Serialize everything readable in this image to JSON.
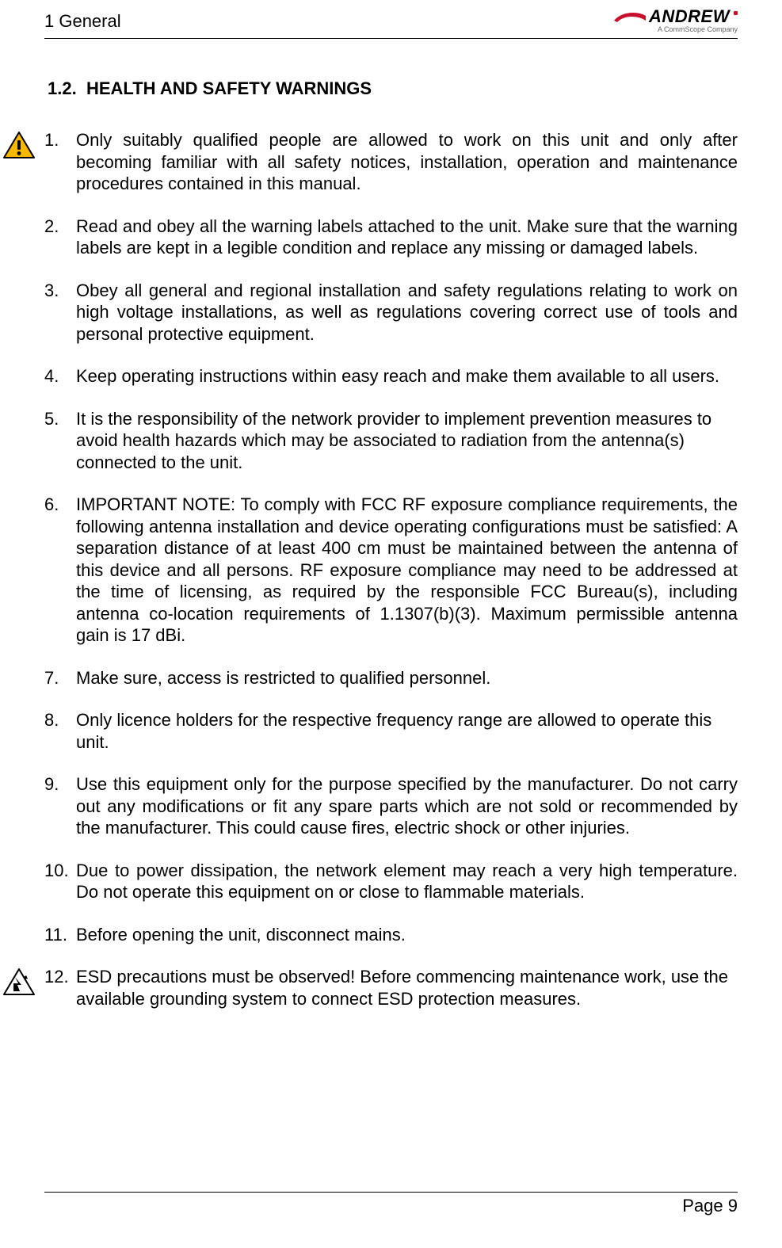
{
  "header": {
    "chapter": "1 General",
    "logo_text": "ANDREW",
    "logo_subtitle": "A CommScope Company",
    "logo_swoosh_color": "#c8102e",
    "logo_dot_color": "#c8102e"
  },
  "section": {
    "number": "1.2.",
    "title": "HEALTH AND SAFETY WARNINGS"
  },
  "items": [
    {
      "n": "1.",
      "justify": true,
      "icon": "warning",
      "text": "Only suitably qualified people are allowed to work on this unit and only after becoming familiar with all safety notices, installation, operation and maintenance procedures contained in this manual."
    },
    {
      "n": "2.",
      "justify": true,
      "icon": null,
      "text": "Read and obey all the warning labels attached to the unit. Make sure that the warning labels are kept in a legible condition and replace any missing or damaged labels."
    },
    {
      "n": "3.",
      "justify": true,
      "icon": null,
      "text": "Obey all general and regional installation and safety regulations relating to work on high voltage installations, as well as regulations covering correct use of tools and personal protective equipment."
    },
    {
      "n": "4.",
      "justify": true,
      "icon": null,
      "text": "Keep operating instructions within easy reach and make them available to all users."
    },
    {
      "n": "5.",
      "justify": false,
      "icon": null,
      "text": "It is the responsibility of the network provider to implement prevention measures to avoid health hazards which may be associated to radiation from the antenna(s) connected to the unit."
    },
    {
      "n": "6.",
      "justify": true,
      "icon": null,
      "text": "IMPORTANT NOTE: To comply with FCC RF exposure compliance requirements, the following antenna installation and device operating configurations must be satisfied: A separation distance of at least 400 cm must be maintained between the antenna of this device and all persons. RF exposure compliance may need to be addressed at the time of licensing, as required by the responsible FCC Bureau(s), including antenna co-location requirements of 1.1307(b)(3). Maximum permissible antenna gain is 17 dBi."
    },
    {
      "n": "7.",
      "justify": false,
      "icon": null,
      "text": "Make sure, access is restricted to qualified personnel."
    },
    {
      "n": "8.",
      "justify": false,
      "icon": null,
      "text": "Only licence holders for the respective frequency range are allowed to operate this unit."
    },
    {
      "n": "9.",
      "justify": true,
      "icon": null,
      "text": "Use this equipment only for the purpose specified by the manufacturer. Do not carry out any modifications or fit any spare parts which are not sold or recommended by the manufacturer. This could cause fires, electric shock or other injuries."
    },
    {
      "n": "10.",
      "justify": true,
      "icon": null,
      "text": "Due to power dissipation, the network element may reach a very high temperature. Do not operate this equipment on or close to flammable materials."
    },
    {
      "n": "11.",
      "justify": false,
      "icon": null,
      "text": "Before opening the unit, disconnect mains."
    },
    {
      "n": "12.",
      "justify": false,
      "icon": "esd",
      "text": "ESD precautions must be observed! Before commencing maintenance work, use the available grounding system to connect ESD protection measures."
    }
  ],
  "footer": {
    "page_label": "Page 9"
  },
  "icons": {
    "warning": {
      "fill": "#f9b800",
      "stroke": "#000000"
    },
    "esd": {
      "fill": "#ffffff",
      "stroke": "#000000"
    }
  }
}
